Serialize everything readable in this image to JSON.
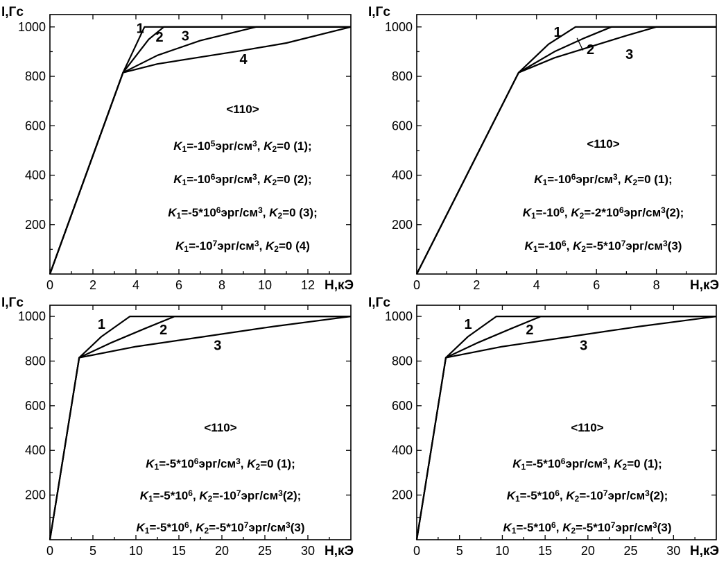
{
  "chart_data": [
    {
      "type": "line",
      "ylabel": "I,Гс",
      "xlabel": "H,кЭ",
      "xlim": [
        0,
        14
      ],
      "ylim": [
        0,
        1050
      ],
      "xticks": [
        "0",
        "2",
        "4",
        "6",
        "8",
        "10",
        "12"
      ],
      "yticks": [
        "200",
        "400",
        "600",
        "800",
        "1000"
      ],
      "grid": false,
      "series": [
        {
          "name": "1",
          "x": [
            0,
            3.4,
            4.4,
            14
          ],
          "y": [
            0,
            815,
            1000,
            1000
          ]
        },
        {
          "name": "2",
          "x": [
            0,
            3.4,
            4.6,
            5.3,
            14
          ],
          "y": [
            0,
            815,
            950,
            1000,
            1000
          ]
        },
        {
          "name": "3",
          "x": [
            0,
            3.4,
            5.0,
            7.0,
            9.6,
            14
          ],
          "y": [
            0,
            815,
            885,
            945,
            1000,
            1000
          ]
        },
        {
          "name": "4",
          "x": [
            0,
            3.4,
            5.0,
            7.0,
            9.0,
            11.0,
            14
          ],
          "y": [
            0,
            815,
            850,
            878,
            905,
            935,
            1000
          ]
        }
      ],
      "curve_labels": [
        {
          "text": "1",
          "x": 4.2,
          "y": 975
        },
        {
          "text": "2",
          "x": 5.1,
          "y": 940
        },
        {
          "text": "3",
          "x": 6.3,
          "y": 945
        },
        {
          "text": "4",
          "x": 9.0,
          "y": 850
        }
      ],
      "annotation": {
        "title": "<110>",
        "lines": [
          {
            "k1": "=-10",
            "k1exp": "5",
            "k1unit": "эрг/см",
            "k1unitexp": "3",
            "k2": "=0 (1);"
          },
          {
            "k1": "=-10",
            "k1exp": "6",
            "k1unit": "эрг/см",
            "k1unitexp": "3",
            "k2": "=0 (2);"
          },
          {
            "k1": "=-5*10",
            "k1exp": "6",
            "k1unit": "эрг/см",
            "k1unitexp": "3",
            "k2": "=0 (3);"
          },
          {
            "k1": "=-10",
            "k1exp": "7",
            "k1unit": "эрг/см",
            "k1unitexp": "3",
            "k2": "=0 (4)"
          }
        ]
      }
    },
    {
      "type": "line",
      "ylabel": "I,Гс",
      "xlabel": "H,кЭ",
      "xlim": [
        0,
        10
      ],
      "ylim": [
        0,
        1050
      ],
      "xticks": [
        "0",
        "2",
        "4",
        "6",
        "8"
      ],
      "yticks": [
        "200",
        "400",
        "600",
        "800",
        "1000"
      ],
      "grid": false,
      "series": [
        {
          "name": "1",
          "x": [
            0,
            3.4,
            4.4,
            5.3,
            10
          ],
          "y": [
            0,
            815,
            930,
            1000,
            1000
          ]
        },
        {
          "name": "2",
          "x": [
            0,
            3.4,
            4.6,
            5.6,
            6.5,
            10
          ],
          "y": [
            0,
            815,
            900,
            955,
            1000,
            1000
          ]
        },
        {
          "name": "3",
          "x": [
            0,
            3.4,
            4.6,
            5.8,
            7.0,
            8.0,
            10
          ],
          "y": [
            0,
            815,
            875,
            920,
            965,
            1000,
            1000
          ]
        }
      ],
      "curve_labels": [
        {
          "text": "1",
          "x": 4.7,
          "y": 960
        },
        {
          "text": "2",
          "x": 5.8,
          "y": 890
        },
        {
          "text": "3",
          "x": 7.1,
          "y": 870
        }
      ],
      "annotation": {
        "title": "<110>",
        "lines": [
          {
            "k1": "=-10",
            "k1exp": "6",
            "k1unit": "эрг/см",
            "k1unitexp": "3",
            "k2": "=0 (1);"
          },
          {
            "k1": "=-10",
            "k1exp": "6",
            "k1unit": "",
            "k1unitexp": "",
            "k2": "=-2*10",
            "k2exp": "6",
            "k2unit": "эрг/см",
            "k2unitexp": "3",
            "k2tail": "(2);"
          },
          {
            "k1": "=-10",
            "k1exp": "6",
            "k1unit": "",
            "k1unitexp": "",
            "k2": "=-5*10",
            "k2exp": "7",
            "k2unit": "эрг/см",
            "k2unitexp": "3",
            "k2tail": "(3)"
          }
        ]
      }
    },
    {
      "type": "line",
      "ylabel": "I,Гс",
      "xlabel": "H,кЭ",
      "xlim": [
        0,
        35
      ],
      "ylim": [
        0,
        1050
      ],
      "xticks": [
        "0",
        "5",
        "10",
        "15",
        "20",
        "25",
        "30"
      ],
      "yticks": [
        "200",
        "400",
        "600",
        "800",
        "1000"
      ],
      "grid": false,
      "series": [
        {
          "name": "1",
          "x": [
            0,
            3.4,
            6.0,
            9.3,
            35
          ],
          "y": [
            0,
            815,
            910,
            1000,
            1000
          ]
        },
        {
          "name": "2",
          "x": [
            0,
            3.4,
            7.0,
            11.0,
            14.5,
            35
          ],
          "y": [
            0,
            815,
            880,
            945,
            1000,
            1000
          ]
        },
        {
          "name": "3",
          "x": [
            0,
            3.4,
            10.0,
            18.0,
            26.0,
            34.0,
            35
          ],
          "y": [
            0,
            815,
            865,
            910,
            955,
            995,
            1000
          ]
        }
      ],
      "curve_labels": [
        {
          "text": "1",
          "x": 6.0,
          "y": 945
        },
        {
          "text": "2",
          "x": 13.2,
          "y": 920
        },
        {
          "text": "3",
          "x": 19.5,
          "y": 850
        }
      ],
      "annotation": {
        "title": "<110>",
        "lines": [
          {
            "k1": "=-5*10",
            "k1exp": "6",
            "k1unit": "эрг/см",
            "k1unitexp": "3",
            "k2": "=0 (1);"
          },
          {
            "k1": "=-5*10",
            "k1exp": "6",
            "k1unit": "",
            "k1unitexp": "",
            "k2": "=-10",
            "k2exp": "7",
            "k2unit": "эрг/см",
            "k2unitexp": "3",
            "k2tail": "(2);"
          },
          {
            "k1": "=-5*10",
            "k1exp": "6",
            "k1unit": "",
            "k1unitexp": "",
            "k2": "=-5*10",
            "k2exp": "7",
            "k2unit": "эрг/см",
            "k2unitexp": "3",
            "k2tail": "(3)"
          }
        ]
      }
    },
    {
      "type": "line",
      "ylabel": "I,Гс",
      "xlabel": "H,кЭ",
      "xlim": [
        0,
        35
      ],
      "ylim": [
        0,
        1050
      ],
      "xticks": [
        "0",
        "5",
        "10",
        "15",
        "20",
        "25",
        "30"
      ],
      "yticks": [
        "200",
        "400",
        "600",
        "800",
        "1000"
      ],
      "grid": false,
      "series": [
        {
          "name": "1",
          "x": [
            0,
            3.4,
            6.0,
            9.3,
            35
          ],
          "y": [
            0,
            815,
            910,
            1000,
            1000
          ]
        },
        {
          "name": "2",
          "x": [
            0,
            3.4,
            7.0,
            11.0,
            14.5,
            35
          ],
          "y": [
            0,
            815,
            880,
            945,
            1000,
            1000
          ]
        },
        {
          "name": "3",
          "x": [
            0,
            3.4,
            10.0,
            18.0,
            26.0,
            34.0,
            35
          ],
          "y": [
            0,
            815,
            865,
            910,
            955,
            995,
            1000
          ]
        }
      ],
      "curve_labels": [
        {
          "text": "1",
          "x": 6.0,
          "y": 945
        },
        {
          "text": "2",
          "x": 13.2,
          "y": 920
        },
        {
          "text": "3",
          "x": 19.5,
          "y": 850
        }
      ],
      "annotation": {
        "title": "<110>",
        "lines": [
          {
            "k1": "=-5*10",
            "k1exp": "6",
            "k1unit": "эрг/см",
            "k1unitexp": "3",
            "k2": "=0 (1);"
          },
          {
            "k1": "=-5*10",
            "k1exp": "6",
            "k1unit": "",
            "k1unitexp": "",
            "k2": "=-10",
            "k2exp": "7",
            "k2unit": "эрг/см",
            "k2unitexp": "3",
            "k2tail": "(2);"
          },
          {
            "k1": "=-5*10",
            "k1exp": "6",
            "k1unit": "",
            "k1unitexp": "",
            "k2": "=-5*10",
            "k2exp": "7",
            "k2unit": "эрг/см",
            "k2unitexp": "3",
            "k2tail": "(3)"
          }
        ]
      }
    }
  ]
}
